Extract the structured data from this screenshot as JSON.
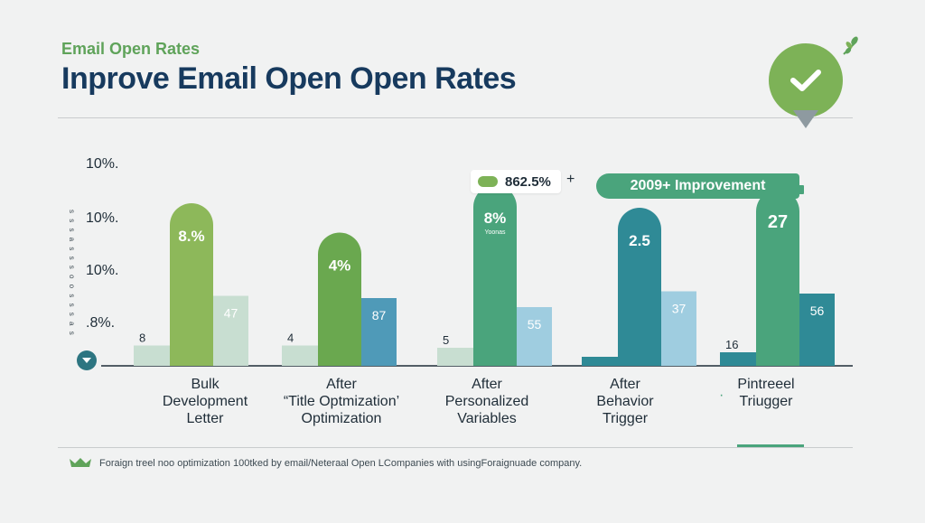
{
  "header": {
    "subtitle": "Email Open Rates",
    "title": "Inprove Email Open Open Rates"
  },
  "icons": {
    "badge": "check-circle-icon",
    "decor": "leaf-sprig-icon",
    "footer": "crown-icon",
    "scroll": "chevron-down-icon"
  },
  "colors": {
    "lime": "#8db85a",
    "green": "#6aa84f",
    "teal_green": "#4aa47c",
    "teal": "#2f8a96",
    "blue": "#4f9ab8",
    "light_sage": "#c8ded1",
    "light_blue": "#9fcde0",
    "navy": "#173a5e"
  },
  "callouts": {
    "left": "862.5%",
    "left_plus": "+",
    "right": "2009+ Improvement"
  },
  "chart_data": {
    "type": "bar",
    "title": "Inprove Email Open Open Rates",
    "y_tick_labels": [
      "10%.",
      "10%.",
      "10%.",
      ".8%."
    ],
    "y_side_marks": "s s s a s s s o o s s s a s",
    "categories": [
      [
        "Bulk",
        "Development",
        "Letter"
      ],
      [
        "After",
        "“Title Optmization’",
        "Optimization"
      ],
      [
        "After",
        "Personalized",
        "Variables"
      ],
      [
        "After",
        "Behavior",
        "Trigger"
      ],
      [
        "Pintreeel",
        "Triugger"
      ]
    ],
    "category_bullet": "·",
    "groups": [
      {
        "small": 9,
        "small_label": "8",
        "tall": 72,
        "tall_label": "8.%",
        "side": 31,
        "side_label": "47"
      },
      {
        "small": 9,
        "small_label": "4",
        "tall": 59,
        "tall_label": "4%",
        "side": 30,
        "side_label": "87"
      },
      {
        "small": 8,
        "small_label": "5",
        "tall": 80,
        "tall_label": "8%",
        "tall_sublabel": "Yoonas",
        "side": 26,
        "side_label": "55"
      },
      {
        "small": 4,
        "small_label": "",
        "tall": 70,
        "tall_label": "2.5",
        "side": 33,
        "side_label": "37"
      },
      {
        "small": 6,
        "small_label": "16",
        "tall": 78,
        "tall_label": "27",
        "side": 32,
        "side_label": "56"
      }
    ],
    "ylim": [
      0,
      100
    ],
    "legend": "none"
  },
  "footer": {
    "note": "Foraign treel noo optimization 100tked by email/Neteraal Open LCompanies with usingForaignuade company."
  }
}
